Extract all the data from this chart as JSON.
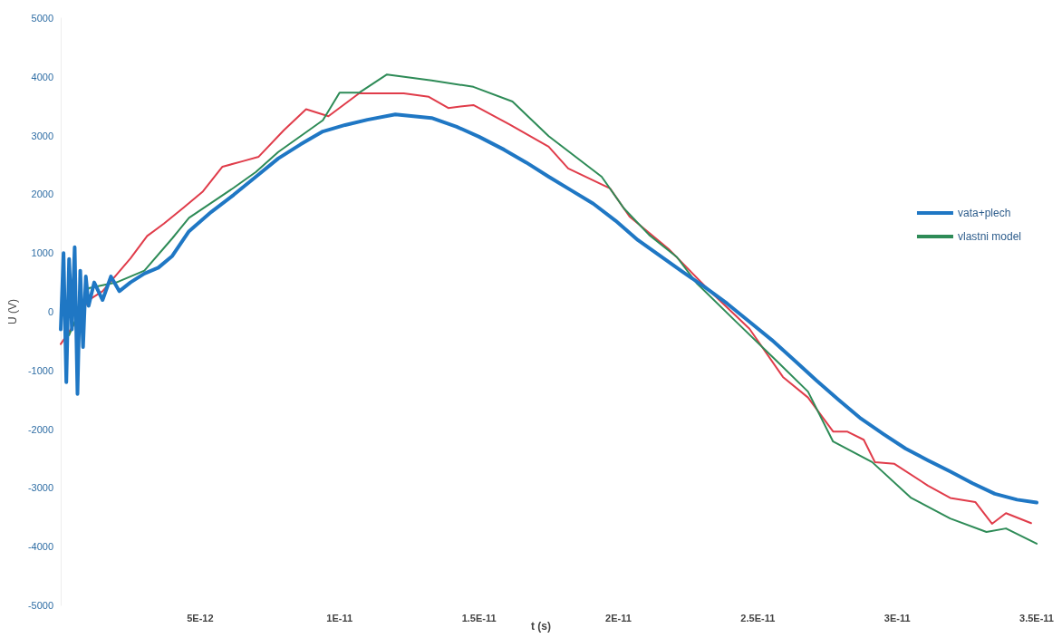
{
  "chart_data": {
    "type": "line",
    "xlabel": "t (s)",
    "ylabel": "U (V)",
    "xlim": [
      0,
      3.5e-11
    ],
    "ylim": [
      -5000,
      5000
    ],
    "xticks": [
      {
        "value": 5e-12,
        "label": "5E-12"
      },
      {
        "value": 1e-11,
        "label": "1E-11"
      },
      {
        "value": 1.5e-11,
        "label": "1.5E-11"
      },
      {
        "value": 2e-11,
        "label": "2E-11"
      },
      {
        "value": 2.5e-11,
        "label": "2.5E-11"
      },
      {
        "value": 3e-11,
        "label": "3E-11"
      },
      {
        "value": 3.5e-11,
        "label": "3.5E-11"
      }
    ],
    "yticks": [
      -5000,
      -4000,
      -3000,
      -2000,
      -1000,
      0,
      1000,
      2000,
      3000,
      4000,
      5000
    ],
    "grid": false,
    "legend": "right",
    "marker": "none",
    "line_style": "solid",
    "series": [
      {
        "name": "vata+plech",
        "color": "#1f77c4",
        "x": [
          0,
          1e-13,
          2e-13,
          3e-13,
          4e-13,
          5e-13,
          6e-13,
          7e-13,
          8e-13,
          9e-13,
          1e-12,
          1.2e-12,
          1.5e-12,
          1.8e-12,
          2.1e-12,
          2.5e-12,
          3e-12,
          3.5e-12,
          4e-12,
          4.6e-12,
          5.4e-12,
          6.2e-12,
          7e-12,
          7.8e-12,
          8.6e-12,
          9.4e-12,
          1.02e-11,
          1.1e-11,
          1.2e-11,
          1.33e-11,
          1.42e-11,
          1.5e-11,
          1.59e-11,
          1.67e-11,
          1.75e-11,
          1.83e-11,
          1.91e-11,
          1.99e-11,
          2.07e-11,
          2.15e-11,
          2.23e-11,
          2.31e-11,
          2.39e-11,
          2.47e-11,
          2.55e-11,
          2.63e-11,
          2.71e-11,
          2.79e-11,
          2.87e-11,
          2.95e-11,
          3.03e-11,
          3.11e-11,
          3.19e-11,
          3.27e-11,
          3.35e-11,
          3.43e-11,
          3.5e-11
        ],
        "values": [
          -300,
          1000,
          -1200,
          900,
          -300,
          1100,
          -1400,
          700,
          -600,
          600,
          100,
          500,
          200,
          600,
          350,
          500,
          650,
          750,
          950,
          1370,
          1700,
          1990,
          2300,
          2610,
          2850,
          3070,
          3180,
          3270,
          3360,
          3300,
          3150,
          2980,
          2760,
          2540,
          2300,
          2070,
          1840,
          1550,
          1220,
          950,
          680,
          420,
          140,
          -170,
          -480,
          -820,
          -1170,
          -1500,
          -1820,
          -2080,
          -2330,
          -2530,
          -2720,
          -2920,
          -3100,
          -3200,
          -3250
        ]
      },
      {
        "name": "vlastni model",
        "color": "#2e8b57",
        "x": [
          3e-13,
          1e-12,
          2e-12,
          3e-12,
          4e-12,
          4.6e-12,
          6.2e-12,
          7e-12,
          7.8e-12,
          9.4e-12,
          1e-11,
          1.07e-11,
          1.17e-11,
          1.33e-11,
          1.48e-11,
          1.62e-11,
          1.75e-11,
          1.94e-11,
          2.02e-11,
          2.11e-11,
          2.21e-11,
          2.28e-11,
          2.42e-11,
          2.57e-11,
          2.68e-11,
          2.77e-11,
          2.91e-11,
          3.05e-11,
          3.19e-11,
          3.32e-11,
          3.39e-11,
          3.5e-11
        ],
        "values": [
          -400,
          400,
          500,
          700,
          1250,
          1600,
          2110,
          2380,
          2720,
          3260,
          3730,
          3730,
          4040,
          3940,
          3830,
          3580,
          2990,
          2300,
          1760,
          1310,
          930,
          490,
          -160,
          -850,
          -1360,
          -2210,
          -2560,
          -3170,
          -3520,
          -3750,
          -3690,
          -3950
        ]
      },
      {
        "color": "#e03c4a",
        "x": [
          0,
          5e-13,
          1e-12,
          1.5e-12,
          1.8e-12,
          2.5e-12,
          3.1e-12,
          3.7e-12,
          4.4e-12,
          5.1e-12,
          5.8e-12,
          6.5e-12,
          7.1e-12,
          8e-12,
          8.8e-12,
          9.6e-12,
          1.07e-11,
          1.23e-11,
          1.32e-11,
          1.39e-11,
          1.48e-11,
          1.61e-11,
          1.75e-11,
          1.82e-11,
          1.97e-11,
          2.04e-11,
          2.18e-11,
          2.32e-11,
          2.47e-11,
          2.59e-11,
          2.68e-11,
          2.77e-11,
          2.82e-11,
          2.88e-11,
          2.92e-11,
          2.99e-11,
          3.11e-11,
          3.19e-11,
          3.28e-11,
          3.34e-11,
          3.39e-11,
          3.48e-11
        ],
        "values": [
          -550,
          -200,
          200,
          350,
          520,
          910,
          1290,
          1500,
          1770,
          2050,
          2470,
          2560,
          2640,
          3090,
          3450,
          3330,
          3720,
          3720,
          3660,
          3470,
          3520,
          3190,
          2810,
          2440,
          2100,
          1620,
          1070,
          390,
          -290,
          -1110,
          -1460,
          -2040,
          -2040,
          -2180,
          -2560,
          -2590,
          -2960,
          -3170,
          -3240,
          -3610,
          -3430,
          -3600
        ]
      }
    ]
  }
}
